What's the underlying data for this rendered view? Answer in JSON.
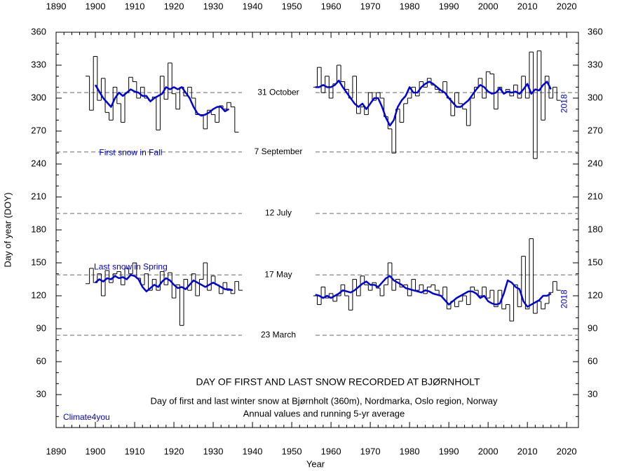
{
  "chart_data": {
    "type": "line",
    "title": "DAY OF FIRST AND LAST SNOW RECORDED AT BJØRNHOLT",
    "subtitle": [
      "Day of first and last winter snow at Bjørnholt (360m), Nordmarka, Oslo region, Norway",
      "Annual values and running 5-yr average"
    ],
    "xlabel": "Year",
    "ylabel": "Day of year (DOY)",
    "source": "Climate4you",
    "annotations": [
      {
        "text": "First snow in Fall",
        "x": 1909,
        "y": 250,
        "color": "#0000cc"
      },
      {
        "text": "Last snow in Spring",
        "x": 1909,
        "y": 146,
        "color": "#0000cc"
      },
      {
        "text": "2018",
        "x": 2019.5,
        "y": 295,
        "color": "#0000cc",
        "rotate": true
      },
      {
        "text": "2018",
        "x": 2019.5,
        "y": 117,
        "color": "#0000cc",
        "rotate": true
      }
    ],
    "reference_lines": [
      {
        "value": 305,
        "label": "31 October"
      },
      {
        "value": 251,
        "label": "7 September"
      },
      {
        "value": 195,
        "label": "12 July"
      },
      {
        "value": 139,
        "label": "17 May"
      },
      {
        "value": 84,
        "label": "23 March"
      }
    ],
    "xlim": [
      1890,
      2023
    ],
    "xticks": [
      1890,
      1900,
      1910,
      1920,
      1930,
      1940,
      1950,
      1960,
      1970,
      1980,
      1990,
      2000,
      2010,
      2020
    ],
    "ylim": [
      0,
      360
    ],
    "yticks": [
      30,
      60,
      90,
      120,
      150,
      180,
      210,
      240,
      270,
      300,
      330,
      360
    ],
    "x": [
      1898,
      1899,
      1900,
      1901,
      1902,
      1903,
      1904,
      1905,
      1906,
      1907,
      1908,
      1909,
      1910,
      1911,
      1912,
      1913,
      1914,
      1915,
      1916,
      1917,
      1918,
      1919,
      1920,
      1921,
      1922,
      1923,
      1924,
      1925,
      1926,
      1927,
      1928,
      1929,
      1930,
      1931,
      1932,
      1933,
      1934,
      1935,
      1936,
      1937,
      1938,
      1939,
      1940,
      1941,
      1942,
      1943,
      1944,
      1945,
      1946,
      1947,
      1948,
      1949,
      1950,
      1951,
      1952,
      1953,
      1954,
      1955,
      1956,
      1957,
      1958,
      1959,
      1960,
      1961,
      1962,
      1963,
      1964,
      1965,
      1966,
      1967,
      1968,
      1969,
      1970,
      1971,
      1972,
      1973,
      1974,
      1975,
      1976,
      1977,
      1978,
      1979,
      1980,
      1981,
      1982,
      1983,
      1984,
      1985,
      1986,
      1987,
      1988,
      1989,
      1990,
      1991,
      1992,
      1993,
      1994,
      1995,
      1996,
      1997,
      1998,
      1999,
      2000,
      2001,
      2002,
      2003,
      2004,
      2005,
      2006,
      2007,
      2008,
      2009,
      2010,
      2011,
      2012,
      2013,
      2014,
      2015,
      2016,
      2017,
      2018
    ],
    "series": [
      {
        "style": "step",
        "color": "#000000",
        "values": [
          320,
          289,
          338,
          298,
          318,
          287,
          280,
          310,
          295,
          278,
          305,
          319,
          315,
          300,
          310,
          300,
          298,
          301,
          271,
          320,
          299,
          332,
          304,
          290,
          310,
          302,
          310,
          300,
          285,
          285,
          272,
          289,
          285,
          278,
          293,
          290,
          296,
          292,
          269,
          null,
          null,
          null,
          null,
          null,
          null,
          null,
          null,
          null,
          null,
          null,
          null,
          null,
          null,
          null,
          null,
          null,
          null,
          null,
          310,
          328,
          305,
          320,
          300,
          313,
          330,
          315,
          308,
          300,
          320,
          286,
          292,
          285,
          305,
          298,
          305,
          300,
          283,
          272,
          250,
          290,
          278,
          295,
          300,
          310,
          302,
          315,
          310,
          318,
          312,
          308,
          305,
          315,
          300,
          284,
          305,
          295,
          290,
          275,
          300,
          310,
          318,
          300,
          324,
          322,
          290,
          310,
          305,
          308,
          302,
          312,
          300,
          320,
          300,
          342,
          245,
          343,
          280,
          320,
          300,
          310,
          298
        ]
      },
      {
        "style": "smooth",
        "color": "#0000dd",
        "values": [
          null,
          null,
          312,
          306,
          300,
          296,
          292,
          300,
          305,
          302,
          305,
          308,
          306,
          305,
          302,
          302,
          297,
          300,
          302,
          304,
          310,
          308,
          310,
          308,
          310,
          305,
          300,
          292,
          286,
          284,
          285,
          287,
          290,
          292,
          292,
          288,
          290,
          null,
          null,
          null,
          null,
          null,
          null,
          null,
          null,
          null,
          null,
          null,
          null,
          null,
          null,
          null,
          null,
          null,
          null,
          null,
          null,
          null,
          310,
          310,
          312,
          310,
          310,
          312,
          316,
          310,
          305,
          300,
          295,
          292,
          295,
          290,
          295,
          300,
          300,
          292,
          282,
          275,
          280,
          292,
          298,
          302,
          310,
          305,
          305,
          310,
          313,
          315,
          313,
          310,
          307,
          305,
          300,
          296,
          292,
          292,
          295,
          298,
          303,
          308,
          312,
          310,
          306,
          304,
          305,
          309,
          304,
          306,
          305,
          306,
          304,
          308,
          313,
          304,
          308,
          307,
          312,
          315,
          308,
          null,
          null
        ]
      },
      {
        "style": "step",
        "color": "#000000",
        "values": [
          131,
          145,
          132,
          140,
          120,
          143,
          132,
          140,
          142,
          130,
          145,
          140,
          150,
          136,
          130,
          140,
          125,
          135,
          125,
          142,
          130,
          141,
          118,
          130,
          93,
          135,
          125,
          140,
          120,
          135,
          150,
          125,
          138,
          130,
          122,
          132,
          125,
          122,
          133,
          125,
          null,
          null,
          null,
          null,
          null,
          null,
          null,
          null,
          null,
          null,
          null,
          null,
          null,
          null,
          null,
          null,
          null,
          null,
          120,
          112,
          128,
          118,
          122,
          115,
          120,
          130,
          120,
          107,
          135,
          120,
          138,
          130,
          125,
          132,
          127,
          120,
          130,
          150,
          125,
          135,
          128,
          130,
          120,
          135,
          125,
          130,
          122,
          128,
          130,
          125,
          120,
          128,
          108,
          115,
          110,
          115,
          120,
          112,
          128,
          125,
          120,
          128,
          118,
          125,
          110,
          125,
          108,
          112,
          97,
          130,
          110,
          156,
          108,
          172,
          104,
          115,
          108,
          113,
          123,
          133,
          125
        ]
      },
      {
        "style": "smooth",
        "color": "#0000dd",
        "values": [
          null,
          null,
          132,
          135,
          133,
          136,
          135,
          138,
          136,
          137,
          135,
          139,
          138,
          135,
          128,
          124,
          127,
          130,
          128,
          133,
          136,
          134,
          130,
          127,
          128,
          126,
          130,
          134,
          132,
          130,
          128,
          130,
          132,
          130,
          128,
          126,
          126,
          125,
          null,
          null,
          null,
          null,
          null,
          null,
          null,
          null,
          null,
          null,
          null,
          null,
          null,
          null,
          null,
          null,
          null,
          null,
          null,
          null,
          121,
          120,
          118,
          120,
          118,
          120,
          122,
          125,
          124,
          123,
          125,
          128,
          131,
          133,
          130,
          130,
          128,
          132,
          136,
          138,
          134,
          132,
          130,
          127,
          126,
          125,
          124,
          123,
          125,
          124,
          122,
          121,
          120,
          116,
          112,
          115,
          118,
          120,
          122,
          124,
          124,
          122,
          118,
          120,
          115,
          113,
          112,
          113,
          122,
          134,
          132,
          128,
          126,
          115,
          110,
          112,
          114,
          116,
          120,
          120,
          122,
          null,
          null
        ]
      }
    ]
  }
}
